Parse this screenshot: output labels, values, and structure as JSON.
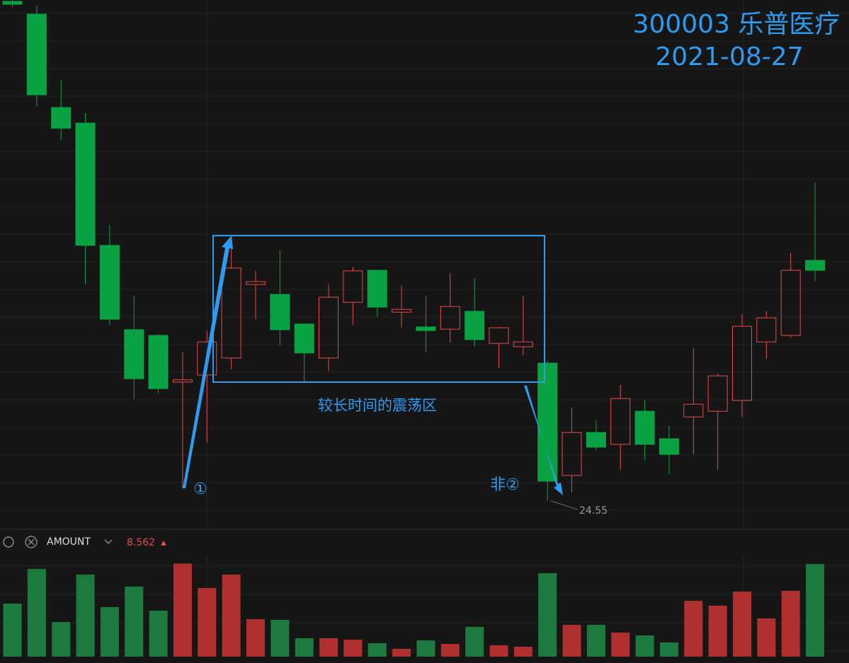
{
  "chart_data": [
    {
      "type": "candlestick",
      "title": "300003 乐普医疗",
      "subtitle": "2021-08-27",
      "up_color": "#e84a4a",
      "down_color": "#0aa344",
      "open": [
        42.2,
        41.75,
        38.45,
        37.9,
        33.58,
        30.6,
        30.4,
        28.75,
        29.0,
        29.6,
        32.2,
        31.85,
        30.8,
        29.6,
        31.57,
        32.7,
        31.22,
        30.7,
        30.62,
        31.25,
        30.12,
        30.0,
        29.42,
        25.45,
        26.97,
        26.55,
        27.72,
        26.75,
        27.52,
        27.72,
        28.1,
        30.17,
        30.4,
        33.05
      ],
      "high": [
        42.25,
        42.05,
        39.42,
        38.25,
        34.3,
        31.8,
        30.45,
        29.8,
        30.55,
        33.95,
        32.68,
        33.4,
        30.8,
        32.2,
        32.82,
        32.7,
        32.15,
        31.8,
        32.6,
        32.42,
        30.7,
        31.8,
        29.5,
        27.85,
        27.42,
        28.65,
        28.12,
        27.2,
        29.95,
        29.05,
        31.15,
        31.25,
        33.32,
        35.8
      ],
      "low": [
        42.0,
        38.5,
        37.3,
        32.2,
        30.78,
        28.15,
        28.35,
        25.0,
        26.62,
        29.2,
        30.97,
        30.05,
        28.75,
        29.12,
        30.78,
        31.05,
        30.67,
        29.8,
        30.15,
        30.0,
        29.25,
        29.7,
        24.55,
        24.85,
        26.35,
        25.65,
        26.0,
        25.5,
        26.2,
        25.65,
        27.52,
        29.57,
        30.32,
        32.32
      ],
      "close": [
        42.1,
        38.9,
        37.72,
        33.58,
        30.97,
        28.87,
        28.52,
        28.83,
        30.17,
        32.78,
        32.3,
        30.6,
        29.78,
        31.75,
        32.68,
        31.4,
        31.32,
        30.57,
        31.42,
        30.25,
        30.67,
        30.17,
        25.25,
        26.97,
        26.45,
        28.17,
        26.55,
        26.2,
        27.97,
        28.97,
        30.72,
        31.02,
        32.7,
        32.7
      ],
      "ylim": [
        23.625,
        42.25
      ],
      "annotations": [
        "较长时间的震荡区",
        "①",
        "非②"
      ],
      "low_label": "24.55"
    },
    {
      "type": "bar",
      "title": "AMOUNT",
      "last_label": "8.562",
      "up_color": "#b03030",
      "down_color": "#1d7a3f",
      "values": [
        4.9,
        8.1,
        3.2,
        7.58,
        4.58,
        6.47,
        4.25,
        8.6,
        6.34,
        7.58,
        3.46,
        3.4,
        1.7,
        1.7,
        1.57,
        1.24,
        0.72,
        1.5,
        1.18,
        2.75,
        1.05,
        0.92,
        7.71,
        2.94,
        2.94,
        2.22,
        1.96,
        1.31,
        5.16,
        4.71,
        6.01,
        3.53,
        6.08,
        8.562
      ],
      "ylim": [
        0,
        9.35
      ]
    }
  ]
}
